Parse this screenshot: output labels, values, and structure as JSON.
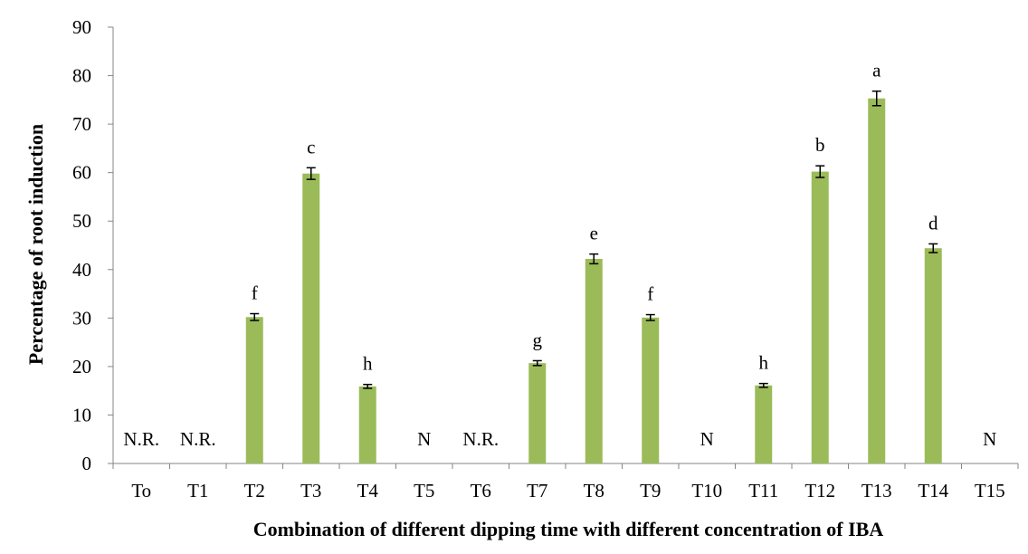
{
  "chart_data": {
    "type": "bar",
    "title": "",
    "xlabel": "Combination of different dipping time with different concentration of IBA",
    "ylabel": "Percentage of root induction",
    "ylim": [
      0,
      90
    ],
    "yticks": [
      0,
      10,
      20,
      30,
      40,
      50,
      60,
      70,
      80,
      90
    ],
    "grid": false,
    "legend": "none",
    "bar_color": "#9BBB59",
    "categories": [
      "To",
      "T1",
      "T2",
      "T3",
      "T4",
      "T5",
      "T6",
      "T7",
      "T8",
      "T9",
      "T10",
      "T11",
      "T12",
      "T13",
      "T14",
      "T15"
    ],
    "values": [
      0,
      0,
      30.2,
      59.8,
      15.9,
      0,
      0,
      20.7,
      42.2,
      30.1,
      0,
      16.1,
      60.2,
      75.3,
      44.4,
      0
    ],
    "errors": [
      0,
      0,
      0.7,
      1.2,
      0.4,
      0,
      0,
      0.5,
      1.0,
      0.6,
      0,
      0.4,
      1.2,
      1.5,
      0.9,
      0
    ],
    "labels": [
      "N.R.",
      "N.R.",
      "f",
      "c",
      "h",
      "N",
      "N.R.",
      "g",
      "e",
      "f",
      "N",
      "h",
      "b",
      "a",
      "d",
      "N"
    ]
  }
}
